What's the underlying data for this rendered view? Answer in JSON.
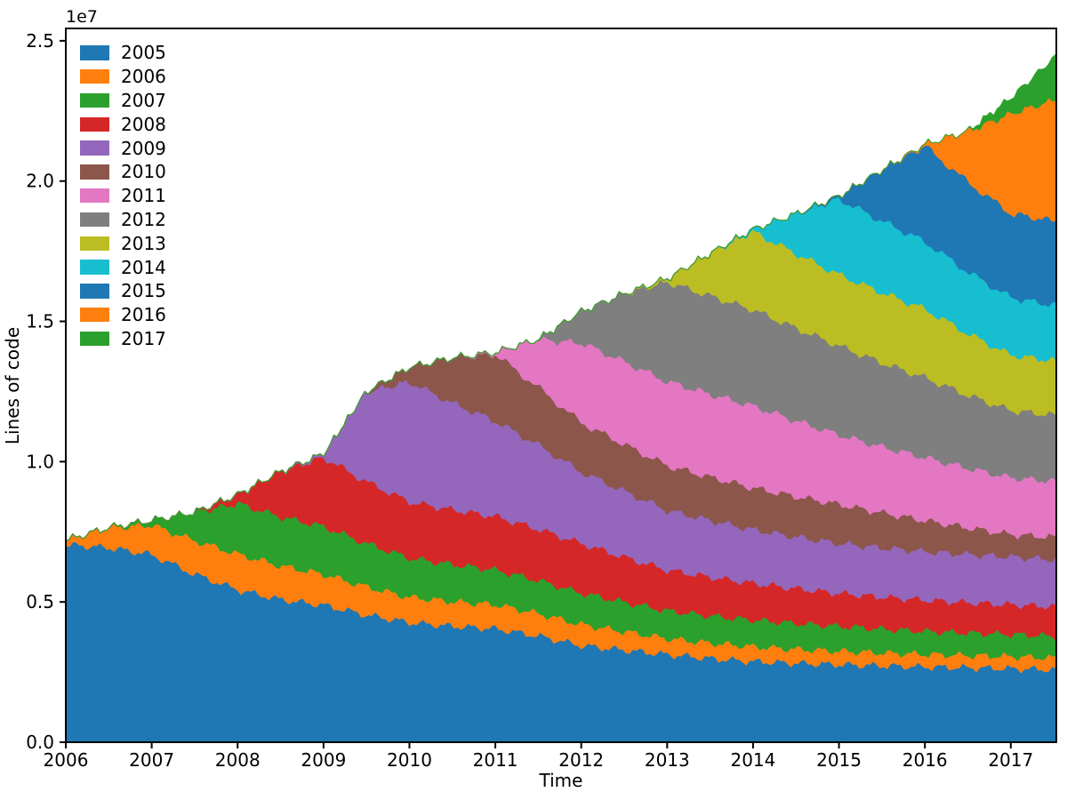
{
  "figure": {
    "xlabel": "Time",
    "ylabel": "Lines of code",
    "offset_label": "1e7"
  },
  "chart_data": {
    "type": "area",
    "stacked": true,
    "title": "",
    "xlabel": "Time",
    "ylabel": "Lines of code",
    "y_offset_label": "1e7",
    "unit": "values in millions of lines (y axis shown in units of 1e7)",
    "legend_position": "upper left",
    "grid": false,
    "xlim": [
      2006,
      2017.53
    ],
    "ylim_millions": [
      0,
      25.44
    ],
    "x_ticks": [
      2006,
      2007,
      2008,
      2009,
      2010,
      2011,
      2012,
      2013,
      2014,
      2015,
      2016,
      2017
    ],
    "y_ticks": [
      {
        "value_millions": 0,
        "label": "0.0"
      },
      {
        "value_millions": 5,
        "label": "0.5"
      },
      {
        "value_millions": 10,
        "label": "1.0"
      },
      {
        "value_millions": 15,
        "label": "1.5"
      },
      {
        "value_millions": 20,
        "label": "2.0"
      },
      {
        "value_millions": 25,
        "label": "2.5"
      }
    ],
    "x": [
      2006.0,
      2006.5,
      2007.0,
      2007.5,
      2008.0,
      2008.5,
      2009.0,
      2009.5,
      2010.0,
      2010.5,
      2011.0,
      2011.5,
      2012.0,
      2012.5,
      2013.0,
      2013.5,
      2014.0,
      2014.5,
      2015.0,
      2015.5,
      2016.0,
      2016.5,
      2017.0,
      2017.5
    ],
    "series": [
      {
        "name": "2005",
        "color": "#1f77b4",
        "values": [
          7.05,
          6.95,
          6.7,
          6.0,
          5.45,
          5.1,
          4.9,
          4.55,
          4.28,
          4.15,
          4.06,
          3.8,
          3.46,
          3.3,
          3.14,
          3.0,
          2.89,
          2.83,
          2.78,
          2.74,
          2.7,
          2.67,
          2.64,
          2.6
        ]
      },
      {
        "name": "2006",
        "color": "#ff7f0e",
        "values": [
          0.15,
          0.7,
          1.05,
          1.2,
          1.27,
          1.2,
          1.1,
          1.0,
          0.9,
          0.88,
          0.86,
          0.8,
          0.75,
          0.66,
          0.57,
          0.55,
          0.53,
          0.5,
          0.48,
          0.46,
          0.45,
          0.44,
          0.43,
          0.42
        ]
      },
      {
        "name": "2007",
        "color": "#2ca02c",
        "values": [
          0,
          0,
          0.15,
          1.0,
          1.8,
          1.75,
          1.7,
          1.55,
          1.4,
          1.32,
          1.24,
          1.18,
          1.12,
          1.05,
          0.99,
          0.97,
          0.95,
          0.92,
          0.89,
          0.85,
          0.82,
          0.8,
          0.79,
          0.78
        ]
      },
      {
        "name": "2008",
        "color": "#d62728",
        "values": [
          0,
          0,
          0,
          0,
          0.3,
          1.6,
          2.47,
          2.2,
          2.0,
          1.95,
          1.9,
          1.83,
          1.77,
          1.6,
          1.45,
          1.38,
          1.31,
          1.24,
          1.17,
          1.14,
          1.11,
          1.08,
          1.06,
          1.05
        ]
      },
      {
        "name": "2009",
        "color": "#9467bd",
        "values": [
          0,
          0,
          0,
          0,
          0,
          0,
          0.1,
          3.2,
          4.28,
          3.8,
          3.4,
          3.0,
          2.55,
          2.35,
          2.13,
          2.02,
          1.91,
          1.84,
          1.78,
          1.75,
          1.73,
          1.72,
          1.7,
          1.68
        ]
      },
      {
        "name": "2010",
        "color": "#8c564b",
        "values": [
          0,
          0,
          0,
          0,
          0,
          0,
          0,
          0,
          0.5,
          1.6,
          2.38,
          2.05,
          1.75,
          1.67,
          1.59,
          1.54,
          1.49,
          1.44,
          1.39,
          1.25,
          1.1,
          0.95,
          0.8,
          0.79
        ]
      },
      {
        "name": "2011",
        "color": "#e377c2",
        "values": [
          0,
          0,
          0,
          0,
          0,
          0,
          0,
          0,
          0,
          0,
          0.05,
          1.7,
          2.85,
          2.95,
          3.0,
          2.96,
          2.92,
          2.7,
          2.48,
          2.35,
          2.25,
          2.12,
          2.02,
          2.0
        ]
      },
      {
        "name": "2012",
        "color": "#7f7f7f",
        "values": [
          0,
          0,
          0,
          0,
          0,
          0,
          0,
          0,
          0,
          0,
          0,
          0,
          1.1,
          2.4,
          3.55,
          3.5,
          3.43,
          3.3,
          3.17,
          3.0,
          2.85,
          2.6,
          2.4,
          2.35
        ]
      },
      {
        "name": "2013",
        "color": "#bcbd22",
        "values": [
          0,
          0,
          0,
          0,
          0,
          0,
          0,
          0,
          0,
          0,
          0,
          0,
          0,
          0,
          0.1,
          1.5,
          2.78,
          2.66,
          2.54,
          2.5,
          2.45,
          2.2,
          1.97,
          1.95
        ]
      },
      {
        "name": "2014",
        "color": "#17becf",
        "values": [
          0,
          0,
          0,
          0,
          0,
          0,
          0,
          0,
          0,
          0,
          0,
          0,
          0,
          0,
          0,
          0,
          0.07,
          1.4,
          2.7,
          2.55,
          2.4,
          2.2,
          2.05,
          1.97
        ]
      },
      {
        "name": "2015",
        "color": "#1f77b4",
        "values": [
          0,
          0,
          0,
          0,
          0,
          0,
          0,
          0,
          0,
          0,
          0,
          0,
          0,
          0,
          0,
          0,
          0,
          0,
          0.08,
          1.8,
          3.4,
          3.2,
          3.0,
          3.0
        ]
      },
      {
        "name": "2016",
        "color": "#ff7f0e",
        "values": [
          0,
          0,
          0,
          0,
          0,
          0,
          0,
          0,
          0,
          0,
          0,
          0,
          0,
          0,
          0,
          0,
          0,
          0,
          0,
          0,
          0.05,
          1.8,
          3.55,
          4.3
        ]
      },
      {
        "name": "2017",
        "color": "#2ca02c",
        "values": [
          0,
          0,
          0,
          0,
          0,
          0,
          0,
          0,
          0,
          0,
          0,
          0,
          0,
          0,
          0,
          0,
          0,
          0,
          0,
          0,
          0,
          0,
          0.55,
          1.5
        ]
      }
    ]
  }
}
